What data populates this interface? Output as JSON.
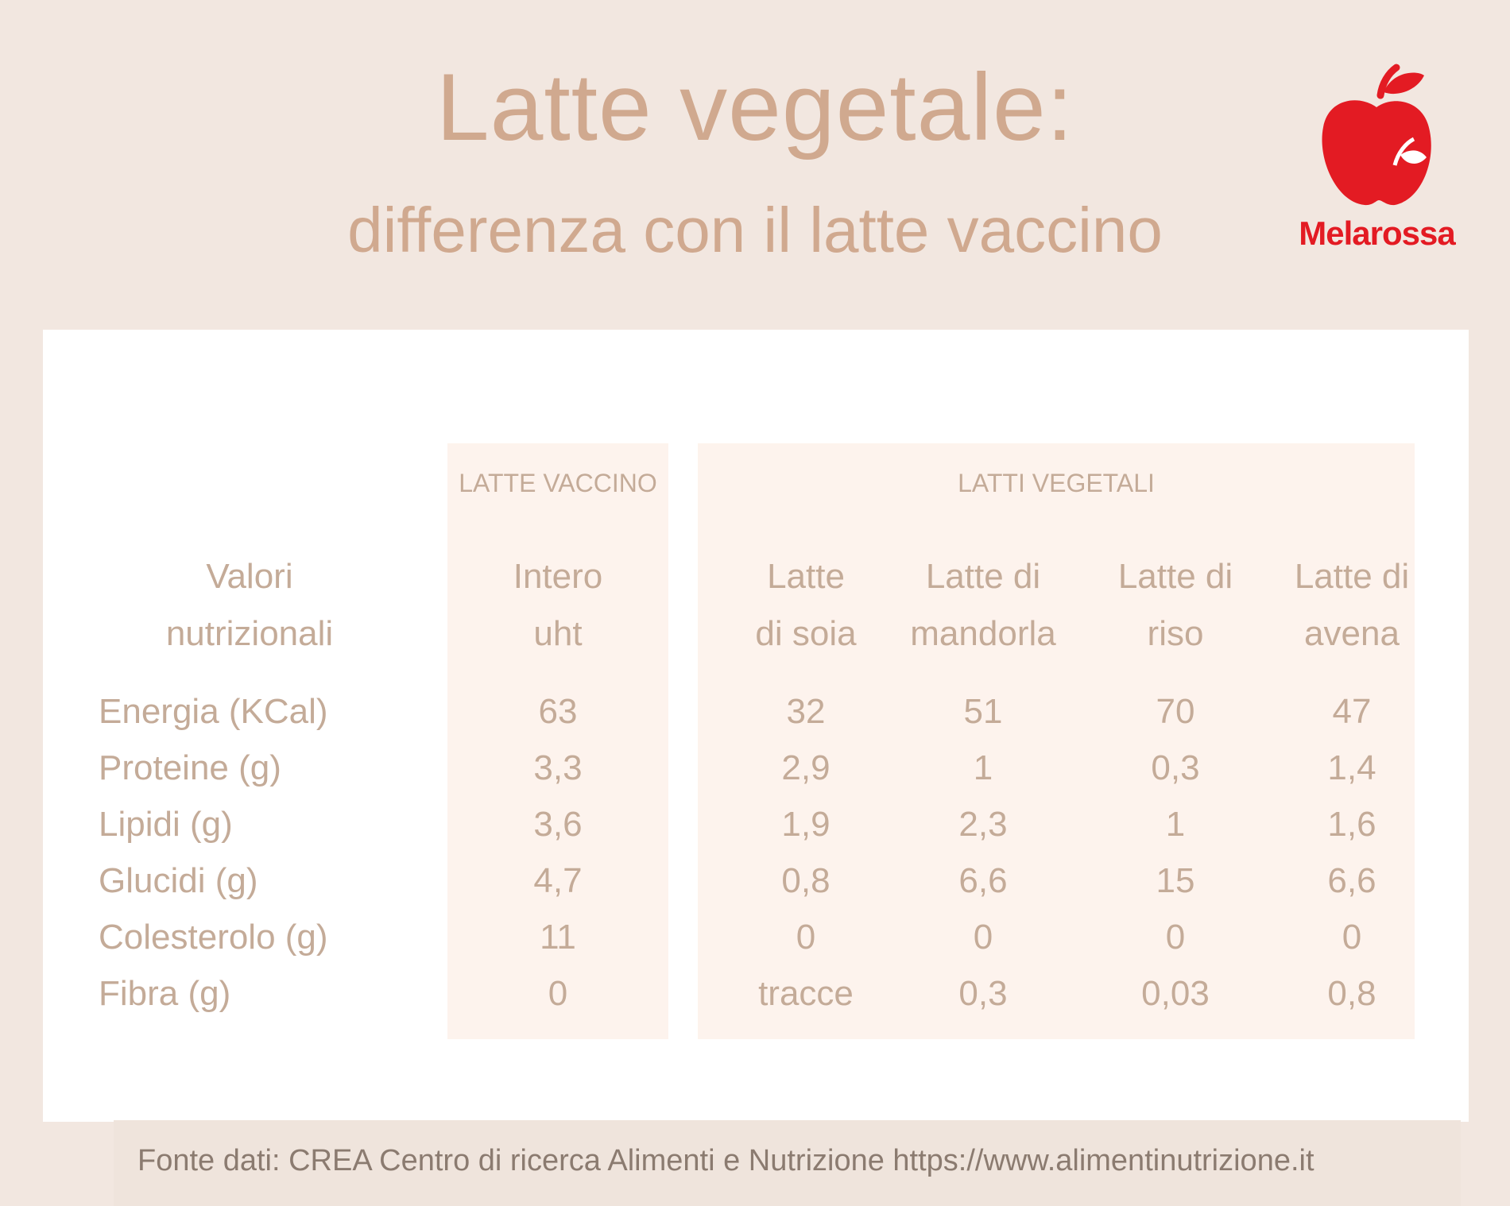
{
  "title": "Latte vegetale:",
  "subtitle": "differenza con il latte vaccino",
  "logo": {
    "brand": "Melarossa",
    "icon": "apple-icon",
    "color": "#e31b23"
  },
  "table": {
    "group_vaccino": "LATTE VACCINO",
    "group_vegetali": "LATTI VEGETALI",
    "header_label_1": "Valori",
    "header_label_2": "nutrizionali",
    "columns": [
      {
        "line1": "Intero",
        "line2": "uht"
      },
      {
        "line1": "Latte",
        "line2": "di soia"
      },
      {
        "line1": "Latte di",
        "line2": "mandorla"
      },
      {
        "line1": "Latte di",
        "line2": "riso"
      },
      {
        "line1": "Latte di",
        "line2": "avena"
      }
    ],
    "rows": [
      {
        "label": "Energia (KCal)",
        "values": [
          "63",
          "32",
          "51",
          "70",
          "47"
        ]
      },
      {
        "label": "Proteine (g)",
        "values": [
          "3,3",
          "2,9",
          "1",
          "0,3",
          "1,4"
        ]
      },
      {
        "label": "Lipidi (g)",
        "values": [
          "3,6",
          "1,9",
          "2,3",
          "1",
          "1,6"
        ]
      },
      {
        "label": "Glucidi (g)",
        "values": [
          "4,7",
          "0,8",
          "6,6",
          "15",
          "6,6"
        ]
      },
      {
        "label": "Colesterolo (g)",
        "values": [
          "11",
          "0",
          "0",
          "0",
          "0"
        ]
      },
      {
        "label": "Fibra (g)",
        "values": [
          "0",
          "tracce",
          "0,3",
          "0,03",
          "0,8"
        ]
      }
    ]
  },
  "footer": "Fonte dati: CREA Centro di ricerca Alimenti e Nutrizione https://www.alimentinutrizione.it"
}
